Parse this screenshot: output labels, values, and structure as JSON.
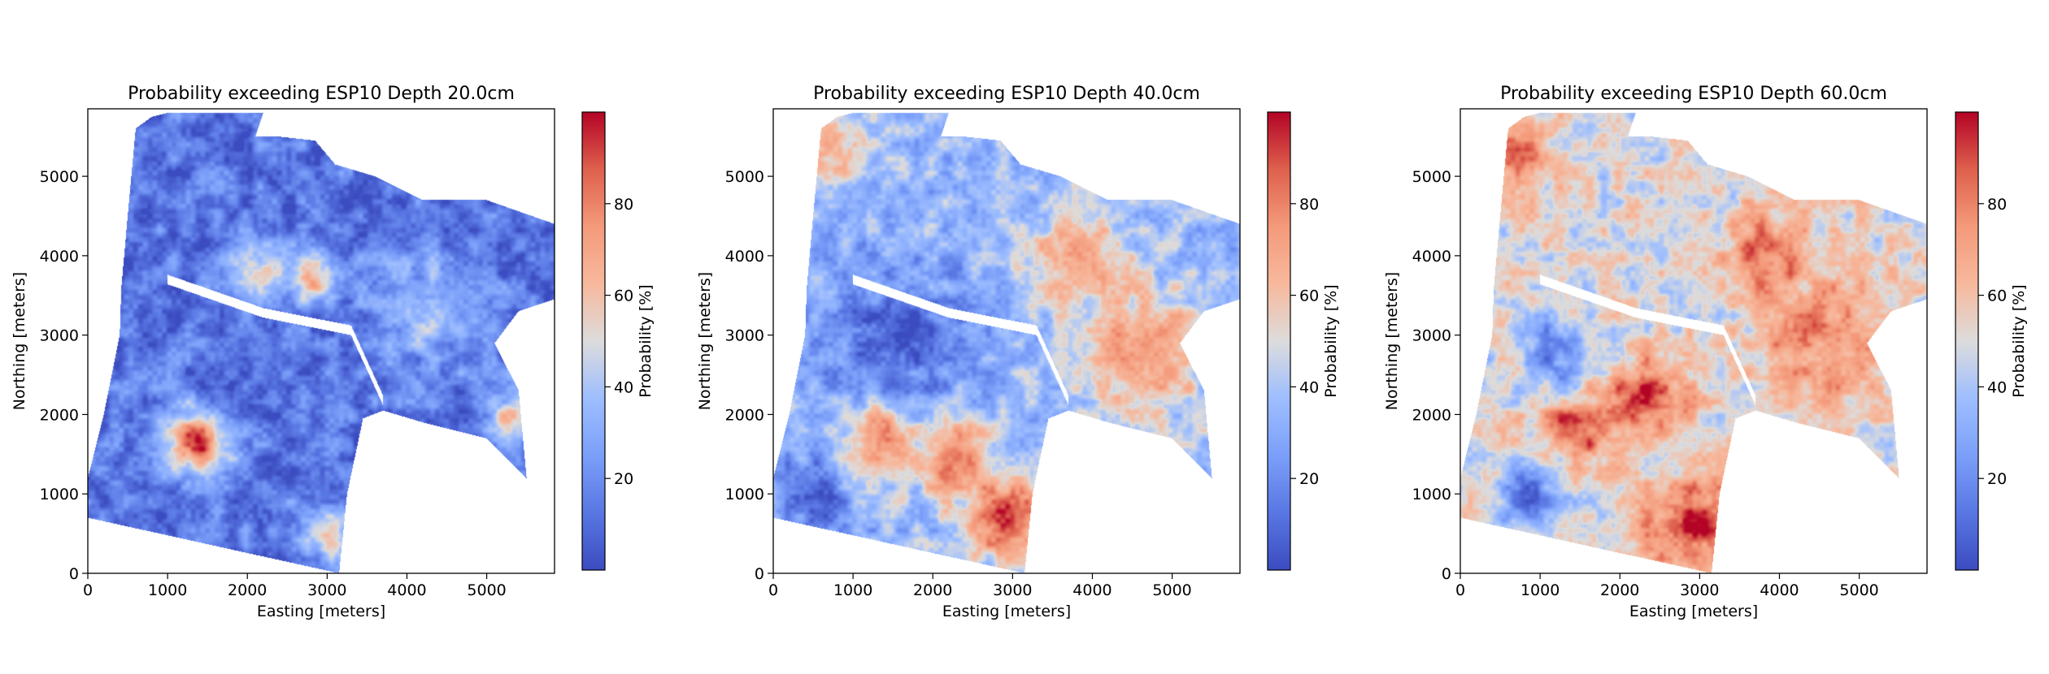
{
  "chart_data": [
    {
      "type": "heatmap",
      "title": "Probability exceeding ESP10 Depth 20.0cm",
      "xlabel": "Easting [meters]",
      "ylabel": "Northing [meters]",
      "xlim": [
        0,
        5850
      ],
      "ylim": [
        0,
        5850
      ],
      "xticks": [
        0,
        1000,
        2000,
        3000,
        4000,
        5000
      ],
      "yticks": [
        0,
        1000,
        2000,
        3000,
        4000,
        5000
      ],
      "colorbar": {
        "label": "Probability [%]",
        "range": [
          0,
          100
        ],
        "ticks": [
          20,
          40,
          60,
          80
        ],
        "colormap": "coolwarm"
      },
      "base_level": 12,
      "hotspots": [
        {
          "x": 1350,
          "y": 1650,
          "r": 380,
          "value": 92
        },
        {
          "x": 2800,
          "y": 3700,
          "r": 250,
          "value": 78
        },
        {
          "x": 3000,
          "y": 500,
          "r": 350,
          "value": 58
        },
        {
          "x": 4200,
          "y": 3300,
          "r": 700,
          "value": 38
        },
        {
          "x": 5300,
          "y": 2000,
          "r": 350,
          "value": 52
        },
        {
          "x": 2200,
          "y": 3800,
          "r": 400,
          "value": 48
        }
      ]
    },
    {
      "type": "heatmap",
      "title": "Probability exceeding ESP10 Depth 40.0cm",
      "xlabel": "Easting [meters]",
      "ylabel": "Northing [meters]",
      "xlim": [
        0,
        5850
      ],
      "ylim": [
        0,
        5850
      ],
      "xticks": [
        0,
        1000,
        2000,
        3000,
        4000,
        5000
      ],
      "yticks": [
        0,
        1000,
        2000,
        3000,
        4000,
        5000
      ],
      "colorbar": {
        "label": "Probability [%]",
        "range": [
          0,
          100
        ],
        "ticks": [
          20,
          40,
          60,
          80
        ],
        "colormap": "coolwarm"
      },
      "base_level": 35,
      "hotspots": [
        {
          "x": 1300,
          "y": 1800,
          "r": 420,
          "value": 94
        },
        {
          "x": 2200,
          "y": 1500,
          "r": 450,
          "value": 88
        },
        {
          "x": 2900,
          "y": 700,
          "r": 500,
          "value": 92
        },
        {
          "x": 3800,
          "y": 4000,
          "r": 500,
          "value": 78
        },
        {
          "x": 4600,
          "y": 2800,
          "r": 800,
          "value": 72
        },
        {
          "x": 700,
          "y": 5400,
          "r": 400,
          "value": 72
        },
        {
          "x": 1500,
          "y": 2900,
          "r": 900,
          "value": 8
        },
        {
          "x": 500,
          "y": 1000,
          "r": 450,
          "value": 10
        }
      ]
    },
    {
      "type": "heatmap",
      "title": "Probability exceeding ESP10 Depth 60.0cm",
      "xlabel": "Easting [meters]",
      "ylabel": "Northing [meters]",
      "xlim": [
        0,
        5850
      ],
      "ylim": [
        0,
        5850
      ],
      "xticks": [
        0,
        1000,
        2000,
        3000,
        4000,
        5000
      ],
      "yticks": [
        0,
        1000,
        2000,
        3000,
        4000,
        5000
      ],
      "colorbar": {
        "label": "Probability [%]",
        "range": [
          0,
          100
        ],
        "ticks": [
          20,
          40,
          60,
          80
        ],
        "colormap": "coolwarm"
      },
      "base_level": 50,
      "hotspots": [
        {
          "x": 1400,
          "y": 1800,
          "r": 450,
          "value": 92
        },
        {
          "x": 2300,
          "y": 2200,
          "r": 500,
          "value": 95
        },
        {
          "x": 2900,
          "y": 600,
          "r": 550,
          "value": 96
        },
        {
          "x": 3800,
          "y": 4000,
          "r": 500,
          "value": 85
        },
        {
          "x": 4600,
          "y": 2900,
          "r": 800,
          "value": 78
        },
        {
          "x": 700,
          "y": 5300,
          "r": 400,
          "value": 80
        },
        {
          "x": 1200,
          "y": 2800,
          "r": 450,
          "value": 22
        },
        {
          "x": 900,
          "y": 1000,
          "r": 450,
          "value": 15
        }
      ]
    }
  ]
}
